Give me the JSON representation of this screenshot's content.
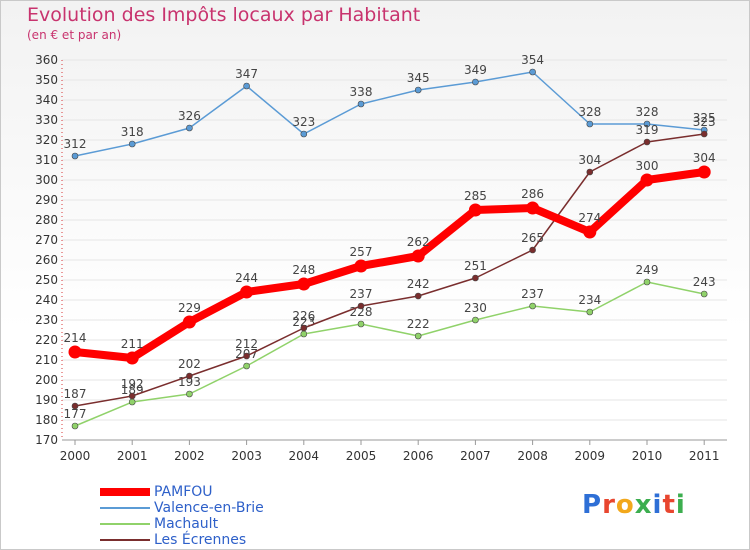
{
  "title": "Evolution des Impôts locaux par Habitant",
  "subtitle": "(en € et par an)",
  "logo_text": "Proxiti",
  "colors": {
    "title": "#c8336e",
    "axis_text": "#333333",
    "grid": "#e6e6e6",
    "legend_text": "#2e60c9"
  },
  "chart_data": {
    "type": "line",
    "title": "Evolution des Impôts locaux par Habitant",
    "subtitle": "(en € et par an)",
    "xlabel": "",
    "ylabel": "",
    "x": [
      "2000",
      "2001",
      "2002",
      "2003",
      "2004",
      "2005",
      "2006",
      "2007",
      "2008",
      "2009",
      "2010",
      "2011"
    ],
    "ylim": [
      170,
      360
    ],
    "yticks": [
      170,
      180,
      190,
      200,
      210,
      220,
      230,
      240,
      250,
      260,
      270,
      280,
      290,
      300,
      310,
      320,
      330,
      340,
      350,
      360
    ],
    "grid": true,
    "legend_position": "bottom-left",
    "series": [
      {
        "name": "PAMFOU",
        "color": "#ff0000",
        "emphasis": true,
        "values": [
          214,
          211,
          229,
          244,
          248,
          257,
          262,
          285,
          286,
          274,
          300,
          304
        ],
        "labels": [
          "214",
          "211",
          "229",
          "244",
          "248",
          "257",
          "262",
          "285",
          "286",
          "274",
          "300",
          "304"
        ]
      },
      {
        "name": "Valence-en-Brie",
        "color": "#5b9bd5",
        "emphasis": false,
        "values": [
          312,
          318,
          326,
          347,
          323,
          338,
          345,
          349,
          354,
          328,
          328,
          325
        ],
        "labels": [
          "312",
          "318",
          "326",
          "347",
          "323",
          "338",
          "345",
          "349",
          "354",
          "328",
          "328",
          "325"
        ]
      },
      {
        "name": "Machault",
        "color": "#90d26a",
        "emphasis": false,
        "values": [
          177,
          189,
          193,
          207,
          223,
          228,
          222,
          230,
          237,
          234,
          249,
          243
        ],
        "labels": [
          "177",
          "189",
          "193",
          "207",
          "223",
          "228",
          "222",
          "230",
          "237",
          "234",
          "249",
          "243"
        ]
      },
      {
        "name": "Les Écrennes",
        "color": "#7a2e2e",
        "emphasis": false,
        "values": [
          187,
          192,
          202,
          212,
          226,
          237,
          242,
          251,
          265,
          304,
          319,
          323
        ],
        "labels": [
          "187",
          "192",
          "202",
          "212",
          "226",
          "237",
          "242",
          "251",
          "265",
          "304",
          "319",
          "323"
        ]
      }
    ]
  }
}
